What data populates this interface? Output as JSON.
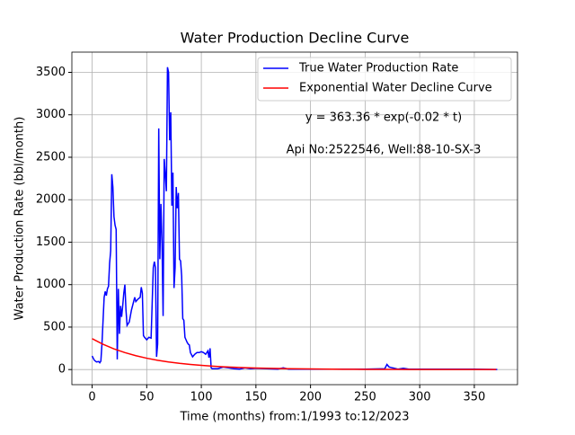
{
  "chart_data": {
    "type": "line",
    "title": "Water Production Decline Curve",
    "xlabel": "Time (months) from:1/1993 to:12/2023",
    "ylabel": "Water Production Rate (bbl/month)",
    "annotations": [
      "y = 363.36 * exp(-0.02 * t)",
      "Api No:2522546, Well:88-10-SX-3"
    ],
    "xlim": [
      -18.55,
      389.55
    ],
    "ylim": [
      -178,
      3738
    ],
    "xticks": [
      0,
      50,
      100,
      150,
      200,
      250,
      300,
      350
    ],
    "yticks": [
      0,
      500,
      1000,
      1500,
      2000,
      2500,
      3000,
      3500
    ],
    "grid": true,
    "legend": "upper right",
    "series": [
      {
        "name": "True Water Production Rate",
        "color": "#0000ff",
        "x": [
          0,
          2,
          4,
          6,
          7,
          8,
          9,
          11,
          12,
          13,
          14,
          15,
          16,
          17,
          18,
          19,
          20,
          21,
          22,
          23,
          24,
          25,
          26,
          27,
          28,
          29,
          30,
          31,
          32,
          34,
          36,
          38,
          39,
          40,
          42,
          44,
          45,
          46,
          47,
          48,
          50,
          52,
          54,
          56,
          57,
          58,
          59,
          60,
          61,
          62,
          63,
          64,
          65,
          66,
          67,
          68,
          69,
          70,
          71,
          72,
          73,
          74,
          75,
          76,
          77,
          78,
          79,
          80,
          81,
          82,
          83,
          84,
          85,
          86,
          87,
          88,
          89,
          90,
          92,
          94,
          96,
          98,
          100,
          102,
          104,
          106,
          107,
          108,
          109,
          110,
          115,
          120,
          125,
          130,
          135,
          140,
          145,
          150,
          160,
          170,
          175,
          180,
          200,
          250,
          268,
          270,
          272,
          275,
          280,
          285,
          290,
          300,
          350,
          371
        ],
        "values": [
          160,
          110,
          90,
          95,
          80,
          100,
          300,
          850,
          920,
          870,
          950,
          980,
          1250,
          1400,
          2300,
          2150,
          1800,
          1700,
          1650,
          120,
          950,
          420,
          750,
          620,
          750,
          900,
          1000,
          700,
          520,
          560,
          700,
          800,
          850,
          800,
          830,
          850,
          970,
          900,
          400,
          380,
          350,
          380,
          370,
          1200,
          1270,
          1200,
          150,
          300,
          2840,
          1300,
          1950,
          1500,
          630,
          2480,
          2300,
          2100,
          3560,
          3500,
          2700,
          3030,
          1930,
          2320,
          960,
          1200,
          2150,
          1900,
          2080,
          1300,
          1280,
          1100,
          600,
          580,
          380,
          350,
          320,
          300,
          290,
          200,
          150,
          180,
          200,
          200,
          210,
          200,
          180,
          220,
          140,
          250,
          20,
          10,
          10,
          30,
          20,
          10,
          5,
          20,
          10,
          15,
          10,
          5,
          20,
          5,
          5,
          5,
          10,
          60,
          30,
          20,
          5,
          15,
          5,
          5,
          5,
          0
        ]
      },
      {
        "name": "Exponential Water Decline Curve",
        "color": "#ff0000",
        "x": [
          0,
          10,
          20,
          30,
          40,
          50,
          60,
          70,
          80,
          90,
          100,
          110,
          120,
          130,
          140,
          150,
          160,
          170,
          180,
          190,
          200,
          210,
          220,
          230,
          240,
          250,
          260,
          270,
          280,
          290,
          300,
          310,
          320,
          330,
          340,
          350,
          360,
          370
        ],
        "values": [
          363.36,
          297.5,
          243.57,
          199.42,
          163.27,
          133.67,
          109.44,
          89.6,
          73.36,
          60.06,
          49.18,
          40.26,
          32.96,
          26.99,
          22.09,
          18.09,
          14.81,
          12.13,
          9.93,
          8.13,
          6.66,
          5.45,
          4.46,
          3.65,
          2.99,
          2.45,
          2.0,
          1.64,
          1.34,
          1.1,
          0.9,
          0.74,
          0.6,
          0.49,
          0.4,
          0.33,
          0.27,
          0.22
        ]
      }
    ]
  }
}
